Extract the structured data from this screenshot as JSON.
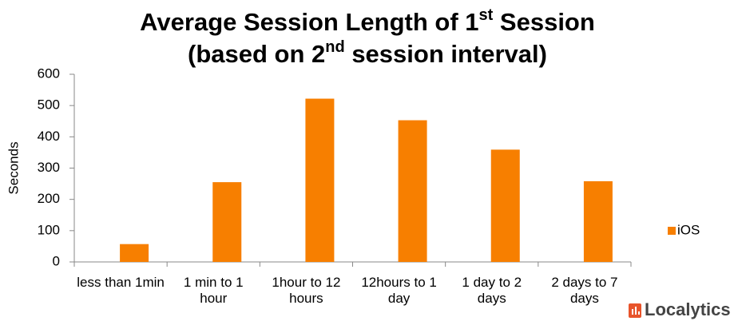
{
  "chart_data": {
    "type": "bar",
    "title_lines": [
      [
        "Average Session Length of 1",
        "st",
        " Session"
      ],
      [
        "(based on 2",
        "nd",
        " session interval)"
      ]
    ],
    "y_label": "Seconds",
    "categories": [
      "less than 1min",
      "1 min to 1 hour",
      "1hour to 12 hours",
      "12hours to 1 day",
      "1 day to 2 days",
      "2 days to 7 days"
    ],
    "series": [
      {
        "name": "iOS",
        "color": "#f77f00",
        "values": [
          57,
          255,
          522,
          453,
          359,
          258
        ]
      }
    ],
    "ylim": [
      0,
      600
    ],
    "yticks": [
      0,
      100,
      200,
      300,
      400,
      500,
      600
    ],
    "grid": false,
    "legend": "right",
    "brand": "Localytics"
  }
}
